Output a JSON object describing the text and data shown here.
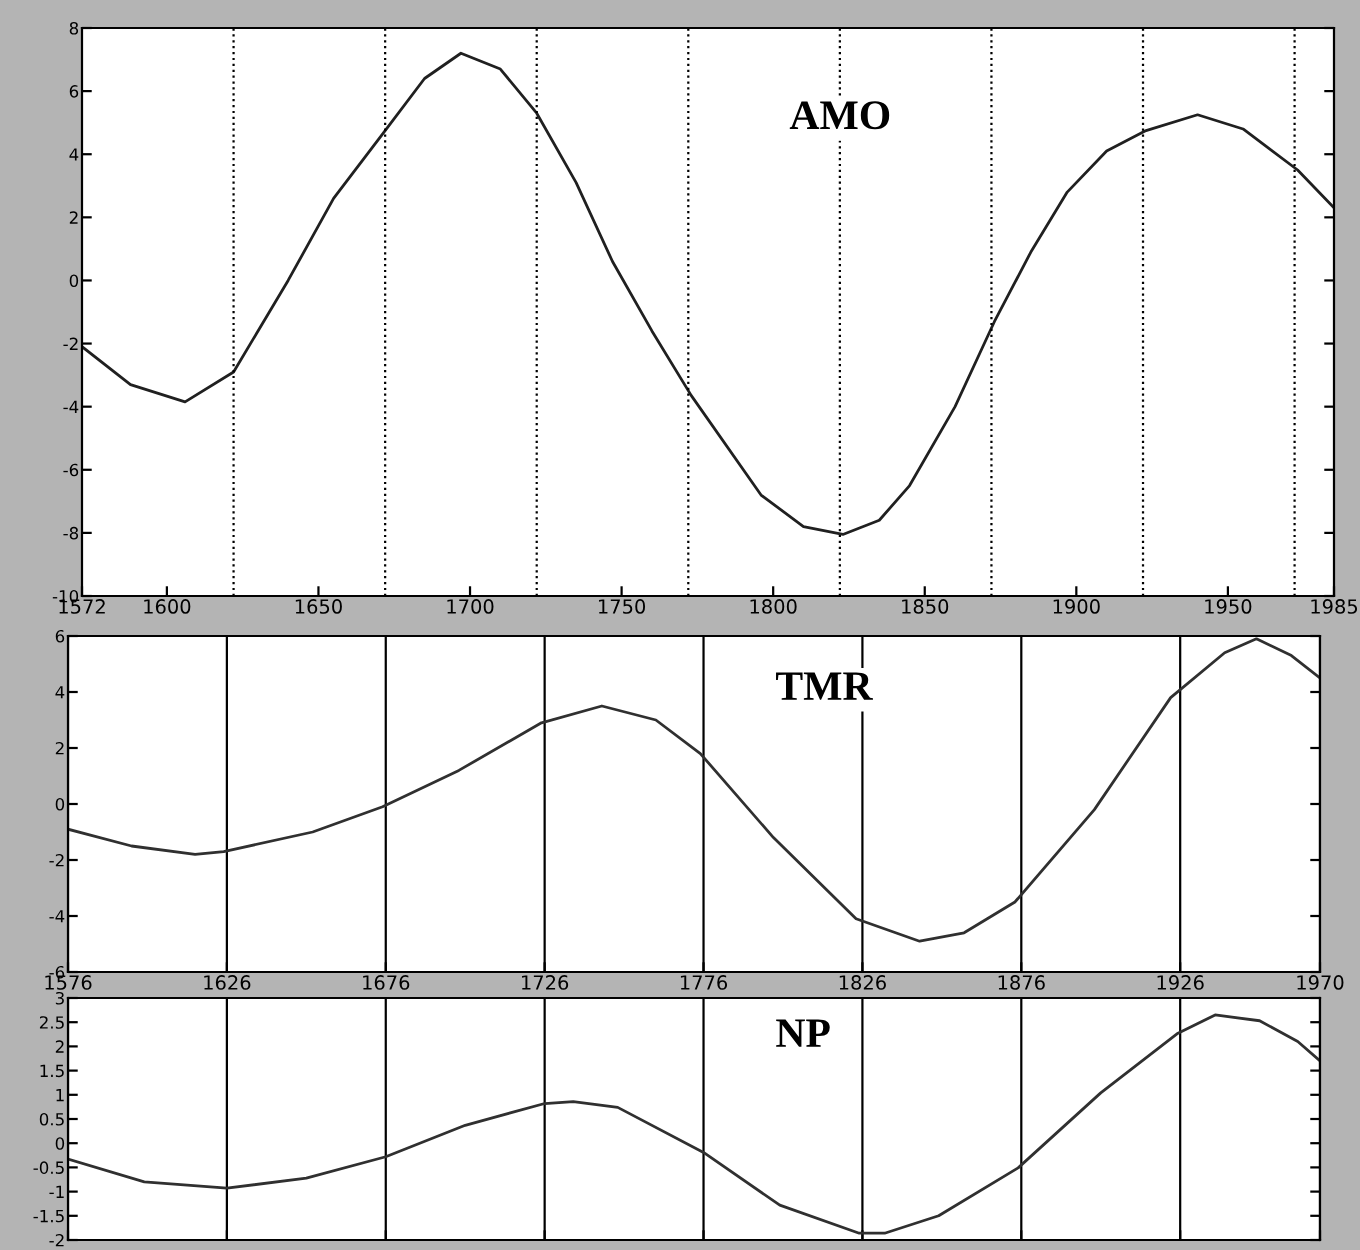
{
  "chart_data": [
    {
      "type": "line",
      "title": "AMO",
      "xlim": [
        1572,
        1985
      ],
      "ylim": [
        -10,
        8
      ],
      "xticks": [
        1572,
        1600,
        1650,
        1700,
        1750,
        1800,
        1850,
        1900,
        1950,
        1985
      ],
      "yticks": [
        -10,
        -8,
        -6,
        -4,
        -2,
        0,
        2,
        4,
        6,
        8
      ],
      "grid": false,
      "line_style": "solid",
      "marker": "none",
      "ref_lines": [
        {
          "axis": "x",
          "value": 1622,
          "line_style": "dotted",
          "color": "#000000"
        },
        {
          "axis": "x",
          "value": 1672,
          "line_style": "dotted",
          "color": "#000000"
        },
        {
          "axis": "x",
          "value": 1722,
          "line_style": "dotted",
          "color": "#000000"
        },
        {
          "axis": "x",
          "value": 1772,
          "line_style": "dotted",
          "color": "#000000"
        },
        {
          "axis": "x",
          "value": 1822,
          "line_style": "dotted",
          "color": "#000000"
        },
        {
          "axis": "x",
          "value": 1872,
          "line_style": "dotted",
          "color": "#000000"
        },
        {
          "axis": "x",
          "value": 1922,
          "line_style": "dotted",
          "color": "#000000"
        },
        {
          "axis": "x",
          "value": 1972,
          "line_style": "dotted",
          "color": "#000000"
        }
      ],
      "series": [
        {
          "color": "#202020",
          "x": [
            1572,
            1588,
            1606,
            1622,
            1640,
            1655,
            1672,
            1685,
            1697,
            1710,
            1722,
            1735,
            1747,
            1760,
            1773,
            1796,
            1810,
            1823,
            1835,
            1845,
            1860,
            1873,
            1885,
            1897,
            1910,
            1923,
            1940,
            1955,
            1973,
            1985
          ],
          "values": [
            -2.1,
            -3.3,
            -3.85,
            -2.9,
            0,
            2.6,
            4.75,
            6.4,
            7.2,
            6.7,
            5.3,
            3.1,
            0.6,
            -1.6,
            -3.65,
            -6.8,
            -7.8,
            -8.05,
            -7.6,
            -6.5,
            -4.0,
            -1.3,
            0.9,
            2.8,
            4.1,
            4.75,
            5.25,
            4.8,
            3.5,
            2.3
          ]
        }
      ]
    },
    {
      "type": "line",
      "title": "TMR",
      "xlim": [
        1576,
        1970
      ],
      "ylim": [
        -6,
        6
      ],
      "xticks": [
        1576,
        1626,
        1676,
        1726,
        1776,
        1826,
        1876,
        1926,
        1970
      ],
      "yticks": [
        -6,
        -4,
        -2,
        0,
        2,
        4,
        6
      ],
      "grid": "x",
      "line_style": "solid",
      "marker": "none",
      "series": [
        {
          "color": "#303030",
          "x": [
            1576,
            1596,
            1616,
            1625,
            1653,
            1675,
            1699,
            1725,
            1744,
            1761,
            1775,
            1798,
            1824,
            1844,
            1858,
            1874,
            1899,
            1923,
            1940,
            1950,
            1961,
            1970
          ],
          "values": [
            -0.9,
            -1.5,
            -1.8,
            -1.7,
            -1.0,
            -0.1,
            1.2,
            2.9,
            3.5,
            3.0,
            1.8,
            -1.2,
            -4.1,
            -4.9,
            -4.6,
            -3.5,
            -0.2,
            3.8,
            5.4,
            5.9,
            5.3,
            4.5
          ]
        }
      ]
    },
    {
      "type": "line",
      "title": "NP",
      "xlim": [
        1576,
        1970
      ],
      "ylim": [
        -2,
        3
      ],
      "xticks": [
        {
          "value": 1576,
          "label": null
        },
        {
          "value": 1626,
          "label": null
        },
        {
          "value": 1676,
          "label": null
        },
        {
          "value": 1726,
          "label": null
        },
        {
          "value": 1776,
          "label": null
        },
        {
          "value": 1826,
          "label": null
        },
        {
          "value": 1876,
          "label": null
        },
        {
          "value": 1926,
          "label": null
        },
        {
          "value": 1970,
          "label": null
        }
      ],
      "yticks": [
        -2,
        -1.5,
        -1,
        -0.5,
        0,
        0.5,
        1,
        1.5,
        2,
        2.5,
        3
      ],
      "tick_labels": "y",
      "grid": "x",
      "line_style": "solid",
      "marker": "none",
      "series": [
        {
          "color": "#303030",
          "x": [
            1576,
            1600,
            1626,
            1651,
            1676,
            1701,
            1726,
            1735,
            1749,
            1776,
            1800,
            1825,
            1833,
            1850,
            1875,
            1901,
            1925,
            1937,
            1951,
            1963,
            1970
          ],
          "values": [
            -0.33,
            -0.8,
            -0.93,
            -0.72,
            -0.28,
            0.37,
            0.82,
            0.86,
            0.74,
            -0.19,
            -1.28,
            -1.86,
            -1.86,
            -1.5,
            -0.51,
            1.04,
            2.26,
            2.65,
            2.53,
            2.1,
            1.7
          ]
        }
      ]
    }
  ]
}
